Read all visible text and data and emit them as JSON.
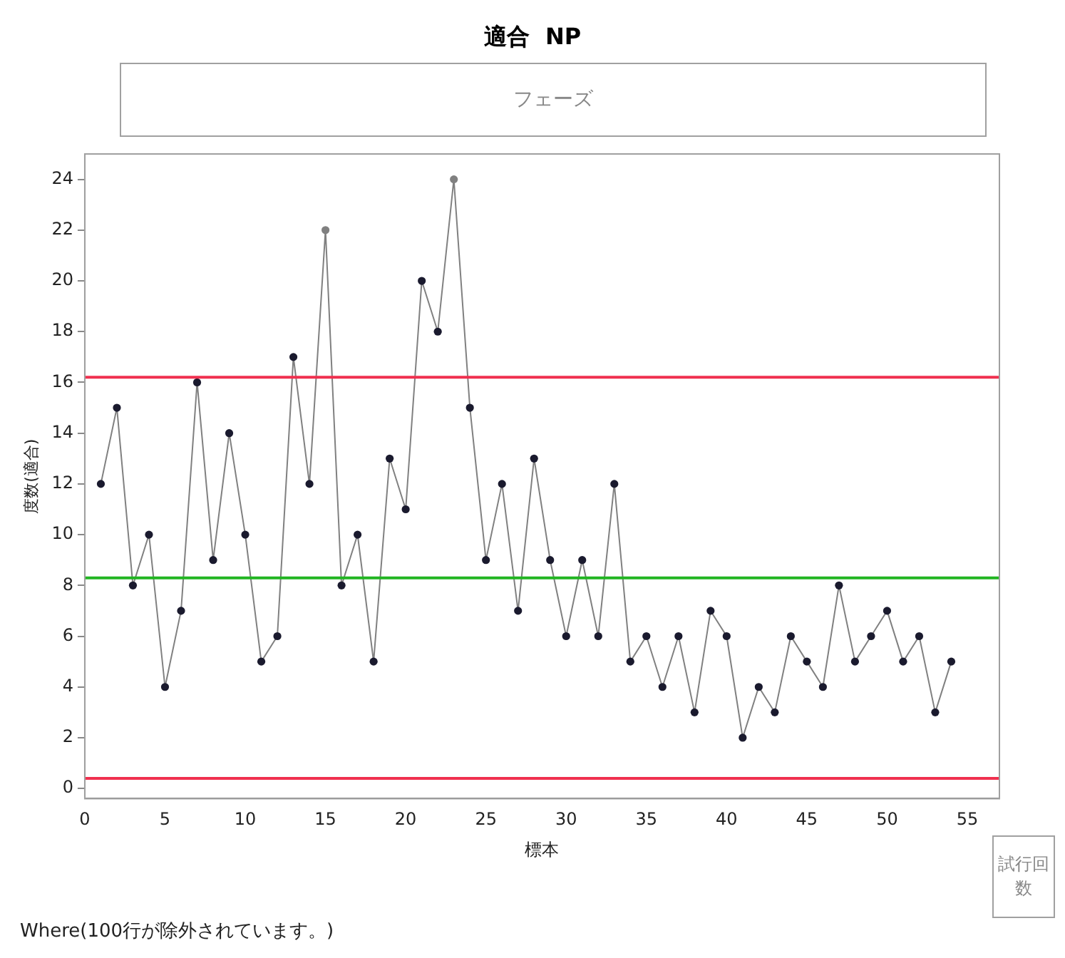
{
  "chart_data": {
    "type": "line",
    "title": "適合  NP",
    "xlabel": "標本",
    "ylabel": "度数(適合)",
    "x": [
      1,
      2,
      3,
      4,
      5,
      6,
      7,
      8,
      9,
      10,
      11,
      12,
      13,
      14,
      15,
      16,
      17,
      18,
      19,
      20,
      21,
      22,
      23,
      24,
      25,
      26,
      27,
      28,
      29,
      30,
      31,
      32,
      33,
      34,
      35,
      36,
      37,
      38,
      39,
      40,
      41,
      42,
      43,
      44,
      45,
      46,
      47,
      48,
      49,
      50,
      51,
      52,
      53,
      54
    ],
    "series": [
      {
        "color": "#808080",
        "values": [
          12,
          15,
          8,
          10,
          4,
          7,
          16,
          9,
          14,
          10,
          5,
          6,
          17,
          12,
          22,
          8,
          10,
          5,
          13,
          11,
          20,
          18,
          24,
          15,
          9,
          12,
          7,
          13,
          9,
          6,
          9,
          6,
          12,
          5,
          6,
          4,
          6,
          3,
          7,
          6,
          2,
          4,
          3,
          6,
          5,
          4,
          8,
          5,
          6,
          7,
          5,
          6,
          3,
          5
        ],
        "colors": [
          "#1a1a2e",
          "#1a1a2e",
          "#1a1a2e",
          "#1a1a2e",
          "#1a1a2e",
          "#1a1a2e",
          "#1a1a2e",
          "#1a1a2e",
          "#1a1a2e",
          "#1a1a2e",
          "#1a1a2e",
          "#1a1a2e",
          "#1a1a2e",
          "#1a1a2e",
          "#808080",
          "#1a1a2e",
          "#1a1a2e",
          "#1a1a2e",
          "#1a1a2e",
          "#1a1a2e",
          "#1a1a2e",
          "#1a1a2e",
          "#808080",
          "#1a1a2e",
          "#1a1a2e",
          "#1a1a2e",
          "#1a1a2e",
          "#1a1a2e",
          "#1a1a2e",
          "#1a1a2e",
          "#1a1a2e",
          "#1a1a2e",
          "#1a1a2e",
          "#1a1a2e",
          "#1a1a2e",
          "#1a1a2e",
          "#1a1a2e",
          "#1a1a2e",
          "#1a1a2e",
          "#1a1a2e",
          "#1a1a2e",
          "#1a1a2e",
          "#1a1a2e",
          "#1a1a2e",
          "#1a1a2e",
          "#1a1a2e",
          "#1a1a2e",
          "#1a1a2e",
          "#1a1a2e",
          "#1a1a2e",
          "#1a1a2e",
          "#1a1a2e",
          "#1a1a2e",
          "#1a1a2e"
        ]
      }
    ],
    "xlim": [
      0,
      57
    ],
    "xticks": [
      0,
      5,
      10,
      15,
      20,
      25,
      30,
      35,
      40,
      45,
      50,
      55
    ],
    "ylim": [
      -0.4,
      25
    ],
    "yticks": [
      0,
      2,
      4,
      6,
      8,
      10,
      12,
      14,
      16,
      18,
      20,
      22,
      24
    ],
    "ref_lines": [
      {
        "axis": "y",
        "value": 16.2,
        "color": "#f0304f"
      },
      {
        "axis": "y",
        "value": 8.3,
        "color": "#22b522"
      },
      {
        "axis": "y",
        "value": 0.4,
        "color": "#f0304f"
      }
    ],
    "annotations": [
      "フェーズ",
      "試行回数",
      "Where(100行が除外されています。)"
    ],
    "grid": false,
    "legend": false,
    "marker": "circle",
    "line_style": "solid"
  }
}
